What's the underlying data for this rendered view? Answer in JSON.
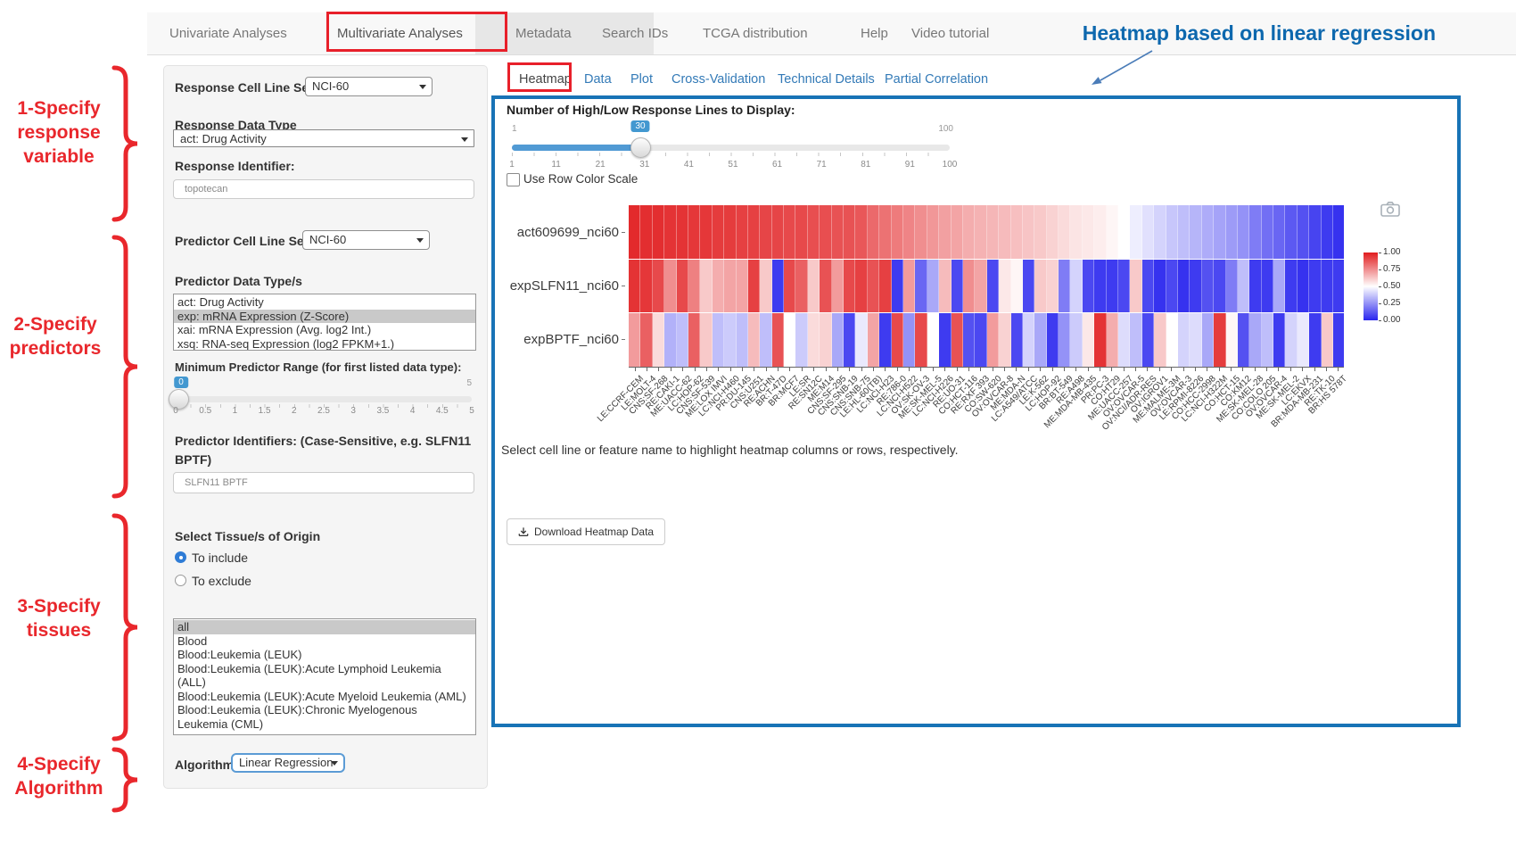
{
  "nav": {
    "items": [
      {
        "label": "Univariate Analyses",
        "active": false
      },
      {
        "label": "Multivariate Analyses",
        "active": true
      },
      {
        "label": "Metadata",
        "active": false
      },
      {
        "label": "Search IDs",
        "active": false
      },
      {
        "label": "TCGA distribution",
        "active": false
      },
      {
        "label": "Help",
        "active": false
      },
      {
        "label": "Video tutorial",
        "active": false
      }
    ]
  },
  "annotations": {
    "heading": "Heatmap based on linear regression",
    "heading_color": "#0d68ae",
    "step_color": "#e9272c",
    "steps": [
      {
        "lines": [
          "1-Specify",
          "response",
          "variable"
        ]
      },
      {
        "lines": [
          "2-Specify",
          "predictors"
        ]
      },
      {
        "lines": [
          "3-Specify",
          "tissues"
        ]
      },
      {
        "lines": [
          "4-Specify",
          "Algorithm"
        ]
      }
    ]
  },
  "sidebar": {
    "response_cell_line_set": {
      "label": "Response Cell Line Set",
      "value": "NCI-60"
    },
    "response_data_type": {
      "label": "Response Data Type",
      "value": "act: Drug Activity"
    },
    "response_identifier": {
      "label": "Response Identifier:",
      "value": "topotecan"
    },
    "predictor_cell_line_set": {
      "label": "Predictor Cell Line Set",
      "value": "NCI-60"
    },
    "predictor_data_types": {
      "label": "Predictor Data Type/s",
      "options": [
        "act: Drug Activity",
        "exp: mRNA Expression (Z-Score)",
        "xai: mRNA Expression (Avg. log2 Int.)",
        "xsq: RNA-seq Expression (log2 FPKM+1.)"
      ],
      "selected_index": 1
    },
    "min_predictor_range": {
      "label": "Minimum Predictor Range (for first listed data type):",
      "min": "0",
      "max": "5",
      "value": "0",
      "ticks": [
        "0",
        "0.5",
        "1",
        "1.5",
        "2",
        "2.5",
        "3",
        "3.5",
        "4",
        "4.5",
        "5"
      ]
    },
    "predictor_identifiers": {
      "label": "Predictor Identifiers: (Case-Sensitive, e.g. SLFN11 BPTF)",
      "value": "SLFN11 BPTF"
    },
    "tissue_origin": {
      "label": "Select Tissue/s of Origin",
      "radios": [
        {
          "label": "To include",
          "selected": true
        },
        {
          "label": "To exclude",
          "selected": false
        }
      ],
      "options": [
        "all",
        "Blood",
        "Blood:Leukemia (LEUK)",
        "Blood:Leukemia (LEUK):Acute Lymphoid Leukemia (ALL)",
        "Blood:Leukemia (LEUK):Acute Myeloid Leukemia (AML)",
        "Blood:Leukemia (LEUK):Chronic Myelogenous Leukemia (CML)"
      ],
      "selected_index": 0
    },
    "algorithm": {
      "label": "Algorithm",
      "value": "Linear Regression"
    }
  },
  "main": {
    "tabs": [
      {
        "label": "Heatmap",
        "active": true
      },
      {
        "label": "Data",
        "active": false
      },
      {
        "label": "Plot",
        "active": false
      },
      {
        "label": "Cross-Validation",
        "active": false
      },
      {
        "label": "Technical Details",
        "active": false
      },
      {
        "label": "Partial Correlation",
        "active": false
      }
    ],
    "lines_slider": {
      "label": "Number of High/Low Response Lines to Display:",
      "min": "1",
      "max": "100",
      "value": "30",
      "ticks": [
        "1",
        "11",
        "21",
        "31",
        "41",
        "51",
        "61",
        "71",
        "81",
        "91",
        "100"
      ]
    },
    "row_color_scale": {
      "label": "Use Row Color Scale",
      "checked": false
    },
    "hint": "Select cell line or feature name to highlight heatmap columns or rows, respectively.",
    "download_button": "Download Heatmap Data"
  },
  "chart_data": {
    "type": "heatmap",
    "rows": [
      "act609699_nci60",
      "expSLFN11_nci60",
      "expBPTF_nci60"
    ],
    "columns": [
      "LE:CCRF-CEM",
      "LE:MOLT-4",
      "CNS:SF-268",
      "RE:CAKI-1",
      "ME:UACC-62",
      "LC:HOP-62",
      "CNS:SF-539",
      "ME:LOX IMVI",
      "LC:NCI-H460",
      "PR:DU-145",
      "CNS:U251",
      "RE:ACHN",
      "BR:T-47D",
      "BR:MCF7",
      "LE:SR",
      "RE:SN12C",
      "ME:M14",
      "CNS:SF-295",
      "CNS:SNB-19",
      "CNS:SNB-75",
      "LE:HL-60(TB)",
      "LC:NCI-H23",
      "RE:786-0",
      "LC:NCI-H522",
      "OV:SK-OV-3",
      "ME:SK-MEL-5",
      "LC:NCI-H226",
      "RE:UO-31",
      "CO:HCT-116",
      "RE:RXF 393",
      "CO:SW-620",
      "OV:OVCAR-8",
      "ME:MDA-N",
      "LC:A549/ATCC",
      "LE:K-562",
      "LC:HOP-92",
      "BR:BT-549",
      "RE:A498",
      "ME:MDA-MB-435",
      "PR:PC-3",
      "CO:HT29",
      "ME:UACC-257",
      "OV:OVCAR-5",
      "OV:NCI/ADR-RES",
      "OV:IGROV1",
      "ME:MALME-3M",
      "OV:OVCAR-3",
      "LE:RPMI-8226",
      "CO:HCC-2998",
      "LC:NCI-H322M",
      "CO:HCT-15",
      "CO:KM12",
      "ME:SK-MEL-28",
      "CO:COLO 205",
      "OV:OVCAR-4",
      "ME:SK-MEL-2",
      "LC:EKVX",
      "BR:MDA-MB-231",
      "RE:TK-10",
      "BR:HS 578T"
    ],
    "values": [
      [
        0.97,
        0.96,
        0.96,
        0.95,
        0.95,
        0.94,
        0.94,
        0.93,
        0.93,
        0.92,
        0.92,
        0.91,
        0.91,
        0.9,
        0.9,
        0.89,
        0.89,
        0.88,
        0.88,
        0.87,
        0.83,
        0.81,
        0.79,
        0.77,
        0.75,
        0.73,
        0.71,
        0.7,
        0.68,
        0.67,
        0.66,
        0.65,
        0.64,
        0.63,
        0.62,
        0.6,
        0.58,
        0.56,
        0.55,
        0.54,
        0.52,
        0.5,
        0.46,
        0.43,
        0.4,
        0.37,
        0.35,
        0.33,
        0.31,
        0.29,
        0.27,
        0.25,
        0.2,
        0.17,
        0.15,
        0.12,
        0.1,
        0.07,
        0.05,
        0.03
      ],
      [
        0.95,
        0.94,
        0.9,
        0.75,
        0.9,
        0.78,
        0.62,
        0.68,
        0.7,
        0.7,
        0.92,
        0.62,
        0.05,
        0.9,
        0.85,
        0.62,
        0.88,
        0.72,
        0.9,
        0.92,
        0.88,
        0.92,
        0.05,
        0.72,
        0.15,
        0.3,
        0.65,
        0.08,
        0.75,
        0.7,
        0.08,
        0.55,
        0.52,
        0.08,
        0.62,
        0.6,
        0.2,
        0.4,
        0.08,
        0.05,
        0.05,
        0.08,
        0.62,
        0.08,
        0.03,
        0.08,
        0.03,
        0.05,
        0.1,
        0.08,
        0.2,
        0.35,
        0.05,
        0.05,
        0.3,
        0.05,
        0.03,
        0.05,
        0.05,
        0.05
      ],
      [
        0.72,
        0.85,
        0.58,
        0.32,
        0.35,
        0.85,
        0.62,
        0.35,
        0.38,
        0.35,
        0.65,
        0.35,
        0.88,
        0.5,
        0.38,
        0.58,
        0.6,
        0.3,
        0.08,
        0.45,
        0.7,
        0.05,
        0.9,
        0.25,
        0.9,
        0.5,
        0.05,
        0.88,
        0.1,
        0.08,
        0.72,
        0.6,
        0.08,
        0.4,
        0.3,
        0.05,
        0.25,
        0.38,
        0.55,
        0.95,
        0.68,
        0.42,
        0.35,
        0.08,
        0.62,
        0.5,
        0.4,
        0.42,
        0.3,
        0.93,
        0.52,
        0.1,
        0.3,
        0.35,
        0.05,
        0.4,
        0.45,
        0.05,
        0.62,
        0.05
      ]
    ],
    "colorscale": {
      "low_color": "#2925ee",
      "mid_color": "#ffffff",
      "high_color": "#e11c1e",
      "min": 0,
      "max": 1
    },
    "legend_ticks": [
      "1.00",
      "0.75",
      "0.50",
      "0.25",
      "0.00"
    ]
  }
}
